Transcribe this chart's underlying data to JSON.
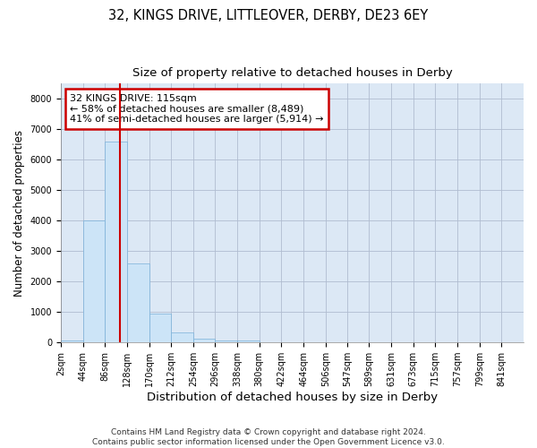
{
  "title": "32, KINGS DRIVE, LITTLEOVER, DERBY, DE23 6EY",
  "subtitle": "Size of property relative to detached houses in Derby",
  "xlabel": "Distribution of detached houses by size in Derby",
  "ylabel": "Number of detached properties",
  "bar_color": "#cce4f7",
  "bar_edge_color": "#7ab0d8",
  "bar_edge_width": 0.5,
  "grid_color": "#b0bcd0",
  "plot_bg_color": "#dce8f5",
  "fig_bg_color": "#ffffff",
  "bin_starts": [
    2,
    44,
    86,
    128,
    170,
    212,
    254,
    296,
    338,
    380,
    422,
    464,
    506,
    547,
    589,
    631,
    673,
    715,
    757,
    799
  ],
  "bin_width": 42,
  "bar_heights": [
    75,
    4000,
    6600,
    2600,
    950,
    320,
    110,
    80,
    80,
    0,
    0,
    0,
    0,
    0,
    0,
    0,
    0,
    0,
    0,
    0
  ],
  "tick_labels": [
    "2sqm",
    "44sqm",
    "86sqm",
    "128sqm",
    "170sqm",
    "212sqm",
    "254sqm",
    "296sqm",
    "338sqm",
    "380sqm",
    "422sqm",
    "464sqm",
    "506sqm",
    "547sqm",
    "589sqm",
    "631sqm",
    "673sqm",
    "715sqm",
    "757sqm",
    "799sqm",
    "841sqm"
  ],
  "red_line_x": 115,
  "ylim": [
    0,
    8500
  ],
  "yticks": [
    0,
    1000,
    2000,
    3000,
    4000,
    5000,
    6000,
    7000,
    8000
  ],
  "annotation_title": "32 KINGS DRIVE: 115sqm",
  "annotation_line1": "← 58% of detached houses are smaller (8,489)",
  "annotation_line2": "41% of semi-detached houses are larger (5,914) →",
  "annotation_box_color": "#ffffff",
  "annotation_box_edge_color": "#cc0000",
  "footer_line1": "Contains HM Land Registry data © Crown copyright and database right 2024.",
  "footer_line2": "Contains public sector information licensed under the Open Government Licence v3.0.",
  "title_fontsize": 10.5,
  "subtitle_fontsize": 9.5,
  "ylabel_fontsize": 8.5,
  "xlabel_fontsize": 9.5,
  "tick_fontsize": 7,
  "footer_fontsize": 6.5,
  "annot_fontsize": 8
}
